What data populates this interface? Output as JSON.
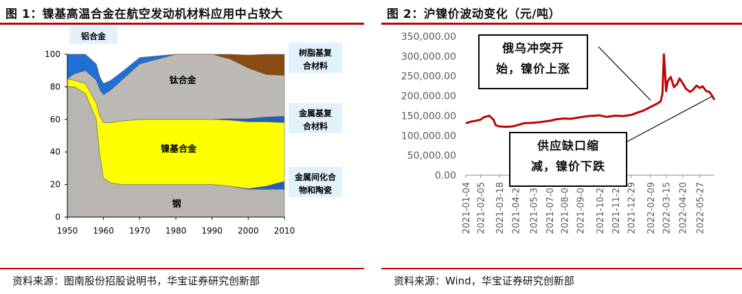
{
  "panel1": {
    "title": "图 1：镍基高温合金在航空发动机材料应用中占较大",
    "source": "资料来源：图南股份招股说明书，华宝证券研究创新部"
  },
  "panel2": {
    "title": "图 2：沪镍价波动变化（元/吨）",
    "source": "资料来源：Wind，华宝证券研究创新部",
    "callouts": {
      "top_line1": "俄乌冲突开",
      "top_line2": "始，镍价上涨",
      "bottom_line1": "供应缺口缩",
      "bottom_line2": "减，镍价下跌"
    }
  },
  "colors": {
    "rule": "#c00000",
    "aluminum": "#1f6fd6",
    "titanium": "#bdbab5",
    "nickel": "#ffff00",
    "steel": "#b9b6b1",
    "resin": "#8b4a12",
    "mmc": "#1f5fbf",
    "price_line": "#c00000",
    "label_bg": "#e2f2fb"
  },
  "chart_data": [
    {
      "type": "area",
      "stacked": true,
      "x": [
        1950,
        1952,
        1955,
        1958,
        1959,
        1960,
        1962,
        1965,
        1970,
        1980,
        1990,
        1995,
        2000,
        2005,
        2010
      ],
      "xlim": [
        1950,
        2010
      ],
      "ylim": [
        0,
        100
      ],
      "xticks": [
        "1950",
        "1960",
        "1970",
        "1980",
        "1990",
        "2000",
        "2010"
      ],
      "yticks": [
        "0",
        "20",
        "40",
        "60",
        "80",
        "100"
      ],
      "series": [
        {
          "name": "钢",
          "color_key": "steel",
          "values": [
            80,
            80,
            76,
            60,
            38,
            24,
            21,
            20,
            20,
            20,
            20,
            19,
            17,
            17,
            17
          ]
        },
        {
          "name": "金属间化合物和陶瓷",
          "color_key": "mmc",
          "values": [
            0,
            0,
            0,
            0,
            0,
            0,
            0,
            0,
            0,
            0,
            0,
            0,
            0.5,
            2,
            5
          ]
        },
        {
          "name": "镍基合金",
          "color_key": "nickel",
          "values": [
            5,
            4,
            6,
            10,
            24,
            34,
            37,
            39,
            40,
            40,
            40,
            40.5,
            41,
            39.5,
            36
          ]
        },
        {
          "name": "金属基复合材料",
          "color_key": "mmc",
          "values": [
            0,
            0,
            0,
            0,
            0,
            0,
            0,
            0,
            0,
            0,
            0,
            1,
            2,
            3,
            4
          ]
        },
        {
          "name": "钛合金",
          "color_key": "titanium",
          "values": [
            0,
            4,
            8,
            14,
            16,
            17,
            20,
            25,
            34,
            40,
            40,
            36.5,
            31,
            26,
            25
          ]
        },
        {
          "name": "铝合金",
          "color_key": "aluminum",
          "values": [
            15,
            12,
            10,
            10,
            8,
            7,
            6,
            5,
            4,
            0,
            0,
            0,
            0,
            0,
            0
          ]
        },
        {
          "name": "树脂基复合材料",
          "color_key": "resin",
          "values": [
            0,
            0,
            0,
            0,
            0,
            0,
            0,
            0,
            0,
            0,
            0,
            3,
            8,
            12.5,
            13
          ]
        }
      ],
      "labels": {
        "aluminum": "铝合金",
        "titanium": "钛合金",
        "nickel": "镍基合金",
        "steel": "钢",
        "resin_l1": "树脂基复",
        "resin_l2": "合材料",
        "mmc_l1": "金属基复",
        "mmc_l2": "合材料",
        "imc_l1": "金属间化合",
        "imc_l2": "物和陶瓷"
      }
    },
    {
      "type": "line",
      "ylim": [
        0,
        350000
      ],
      "yticks": [
        "0.00",
        "50,000.00",
        "100,000.00",
        "150,000.00",
        "200,000.00",
        "250,000.00",
        "300,000.00",
        "350,000.00"
      ],
      "xticks": [
        "2021-01-04",
        "2021-02-05",
        "2021-03-18",
        "2021-04-22",
        "2021-05-31",
        "2021-07-05",
        "2021-08-06",
        "2021-09-09",
        "2021-10-22",
        "2021-11-25",
        "2021-12-29",
        "2022-02-09",
        "2022-03-15",
        "2022-04-20",
        "2022-05-27"
      ],
      "xlim": [
        "2021-01-04",
        "2022-06-28"
      ],
      "series": [
        {
          "name": "沪镍",
          "color_key": "price_line",
          "x": [
            "2021-01-04",
            "2021-01-15",
            "2021-01-29",
            "2021-02-05",
            "2021-02-12",
            "2021-02-24",
            "2021-03-05",
            "2021-03-10",
            "2021-03-18",
            "2021-04-01",
            "2021-04-15",
            "2021-04-22",
            "2021-05-10",
            "2021-05-31",
            "2021-06-15",
            "2021-07-05",
            "2021-07-20",
            "2021-08-06",
            "2021-08-20",
            "2021-09-09",
            "2021-09-27",
            "2021-10-22",
            "2021-11-05",
            "2021-11-25",
            "2021-12-10",
            "2021-12-29",
            "2022-01-12",
            "2022-01-25",
            "2022-02-09",
            "2022-02-23",
            "2022-03-03",
            "2022-03-07",
            "2022-03-08",
            "2022-03-10",
            "2022-03-15",
            "2022-03-18",
            "2022-03-25",
            "2022-04-01",
            "2022-04-08",
            "2022-04-13",
            "2022-04-20",
            "2022-04-27",
            "2022-05-06",
            "2022-05-12",
            "2022-05-20",
            "2022-05-27",
            "2022-06-02",
            "2022-06-10",
            "2022-06-17",
            "2022-06-23",
            "2022-06-28"
          ],
          "values": [
            131000,
            135000,
            138000,
            140000,
            146000,
            150000,
            140000,
            126000,
            123000,
            122000,
            123000,
            125000,
            131000,
            132000,
            134000,
            137000,
            141000,
            143000,
            142000,
            146000,
            149000,
            151000,
            147000,
            150000,
            149000,
            152000,
            158000,
            163000,
            172000,
            180000,
            186000,
            205000,
            240000,
            305000,
            212000,
            236000,
            248000,
            222000,
            230000,
            244000,
            232000,
            218000,
            210000,
            215000,
            226000,
            220000,
            224000,
            212000,
            210000,
            200000,
            190000
          ]
        }
      ]
    }
  ]
}
